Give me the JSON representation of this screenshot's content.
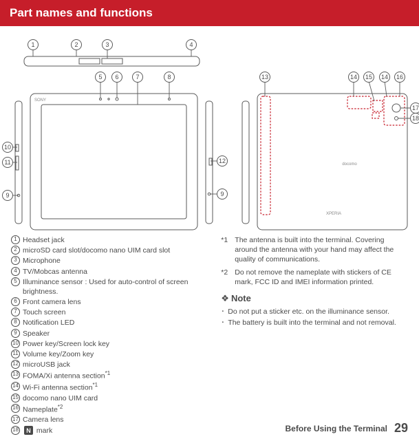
{
  "header": "Part names and functions",
  "parts": [
    {
      "n": "1",
      "label": "Headset jack"
    },
    {
      "n": "2",
      "label": "microSD card slot/docomo nano UIM card slot"
    },
    {
      "n": "3",
      "label": "Microphone"
    },
    {
      "n": "4",
      "label": "TV/Mobcas antenna"
    },
    {
      "n": "5",
      "label": "Illuminance sensor : Used for auto-control of screen brightness."
    },
    {
      "n": "6",
      "label": "Front camera lens"
    },
    {
      "n": "7",
      "label": "Touch screen"
    },
    {
      "n": "8",
      "label": "Notification LED"
    },
    {
      "n": "9",
      "label": "Speaker"
    },
    {
      "n": "10",
      "label": "Power key/Screen lock key"
    },
    {
      "n": "11",
      "label": "Volume key/Zoom key"
    },
    {
      "n": "12",
      "label": "microUSB jack"
    },
    {
      "n": "13",
      "label": "FOMA/Xi antenna section",
      "sup": "*1"
    },
    {
      "n": "14",
      "label": "Wi-Fi antenna section",
      "sup": "*1"
    },
    {
      "n": "15",
      "label": "docomo nano UIM card"
    },
    {
      "n": "16",
      "label": "Nameplate",
      "sup": "*2"
    },
    {
      "n": "17",
      "label": "Camera lens"
    },
    {
      "n": "18",
      "label": " mark",
      "nfc": true
    }
  ],
  "footnotes": [
    {
      "mark": "*1",
      "text": "The antenna is built into the terminal. Covering around the antenna with your hand may affect the quality of communications."
    },
    {
      "mark": "*2",
      "text": "Do not remove the nameplate with stickers of CE mark, FCC ID and IMEI information printed."
    }
  ],
  "noteTitle": "Note",
  "notes": [
    "Do not put a sticker etc. on the illuminance sensor.",
    "The battery is built into the terminal and not removal."
  ],
  "footer": {
    "section": "Before Using the Terminal",
    "page": "29"
  },
  "diagram": {
    "topCallouts": [
      "1",
      "2",
      "3",
      "4"
    ],
    "midCallouts": [
      "5",
      "6",
      "7",
      "8"
    ],
    "leftCallouts": [
      "10",
      "11",
      "9"
    ],
    "rightLeft": [
      "12",
      "9"
    ],
    "backTop": [
      "13",
      "14",
      "15",
      "14",
      "16"
    ],
    "backRight": [
      "17",
      "18"
    ],
    "brand": "SONY",
    "logo1": "docomo",
    "logo2": "XPERIA"
  }
}
